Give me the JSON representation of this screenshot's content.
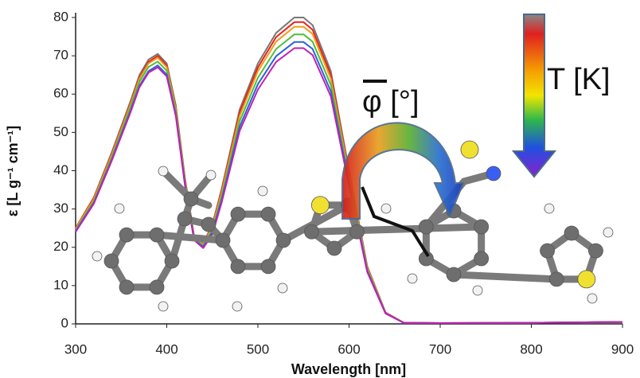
{
  "chart_data": {
    "type": "line",
    "xlabel": "Wavelength [nm]",
    "ylabel": "ε [L g⁻¹ cm⁻¹]",
    "annotations": [
      "T [K]",
      "φ [°]"
    ],
    "x": [
      300,
      320,
      340,
      360,
      370,
      380,
      390,
      400,
      410,
      420,
      430,
      440,
      450,
      460,
      480,
      500,
      520,
      540,
      550,
      560,
      580,
      600,
      620,
      640,
      660,
      700,
      800,
      900
    ],
    "series": [
      {
        "color": "#777777",
        "values": [
          25,
          33,
          45,
          58,
          65,
          69,
          70.5,
          68,
          57,
          38,
          23,
          21,
          26,
          35,
          56,
          68,
          76,
          80,
          80,
          78,
          66,
          40,
          15,
          3,
          0.3,
          0.2,
          0.3,
          0.5
        ]
      },
      {
        "color": "#e8231c",
        "values": [
          25,
          33,
          44.6,
          57.5,
          64.4,
          68.4,
          70,
          67.4,
          56.5,
          37.7,
          22.8,
          20.8,
          25.7,
          34.6,
          55.2,
          67,
          74.9,
          78.8,
          78.8,
          76.8,
          65,
          39.4,
          14.8,
          3,
          0.3,
          0.2,
          0.3,
          0.5
        ]
      },
      {
        "color": "#f39a1c",
        "values": [
          24.8,
          32.6,
          44.3,
          57.1,
          64,
          68,
          69.5,
          67,
          56.1,
          37.4,
          22.7,
          20.7,
          25.4,
          34,
          54.3,
          66,
          73.7,
          77.6,
          77.6,
          75.7,
          64,
          38.8,
          14.6,
          2.9,
          0.3,
          0.2,
          0.3,
          0.5
        ]
      },
      {
        "color": "#4fbf3a",
        "values": [
          24.5,
          32.1,
          43.7,
          56.4,
          63.2,
          67.1,
          68.5,
          66.1,
          55.4,
          37,
          22.4,
          20.4,
          24.7,
          33.1,
          52.9,
          64.3,
          71.8,
          75.6,
          75.6,
          73.7,
          62.4,
          37.8,
          14.2,
          2.8,
          0.3,
          0.2,
          0.3,
          0.5
        ]
      },
      {
        "color": "#2a62d8",
        "values": [
          24.2,
          31.6,
          43.1,
          55.5,
          62.2,
          66,
          67.5,
          65.1,
          54.5,
          36.4,
          22,
          20.1,
          24,
          32.2,
          51.5,
          62.6,
          69.9,
          73.6,
          73.6,
          71.8,
          60.7,
          36.8,
          13.8,
          2.8,
          0.3,
          0.2,
          0.3,
          0.5
        ]
      },
      {
        "color": "#c21fb4",
        "values": [
          24,
          31.4,
          42.8,
          55.1,
          61.8,
          65.6,
          67,
          64.6,
          54.2,
          36.1,
          21.9,
          19.8,
          23.4,
          31.5,
          50.4,
          61.2,
          68.4,
          72,
          72,
          70.2,
          59.4,
          36,
          13.5,
          2.7,
          0.3,
          0.2,
          0.3,
          0.5
        ]
      }
    ],
    "xlim": [
      300,
      900
    ],
    "xticks": [
      300,
      400,
      500,
      600,
      700,
      800,
      900
    ],
    "ylim": [
      0,
      80
    ],
    "yticks": [
      0,
      10,
      20,
      30,
      40,
      50,
      60,
      70,
      80
    ]
  }
}
